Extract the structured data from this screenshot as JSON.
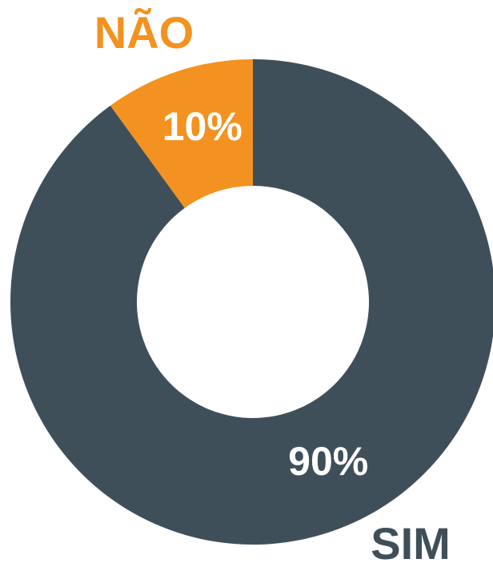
{
  "chart_data": {
    "type": "donut",
    "categories": [
      "SIM",
      "NÃO"
    ],
    "values": [
      90,
      10
    ],
    "value_labels": [
      "90%",
      "10%"
    ],
    "colors": [
      "#3f4f5a",
      "#f39220"
    ]
  }
}
